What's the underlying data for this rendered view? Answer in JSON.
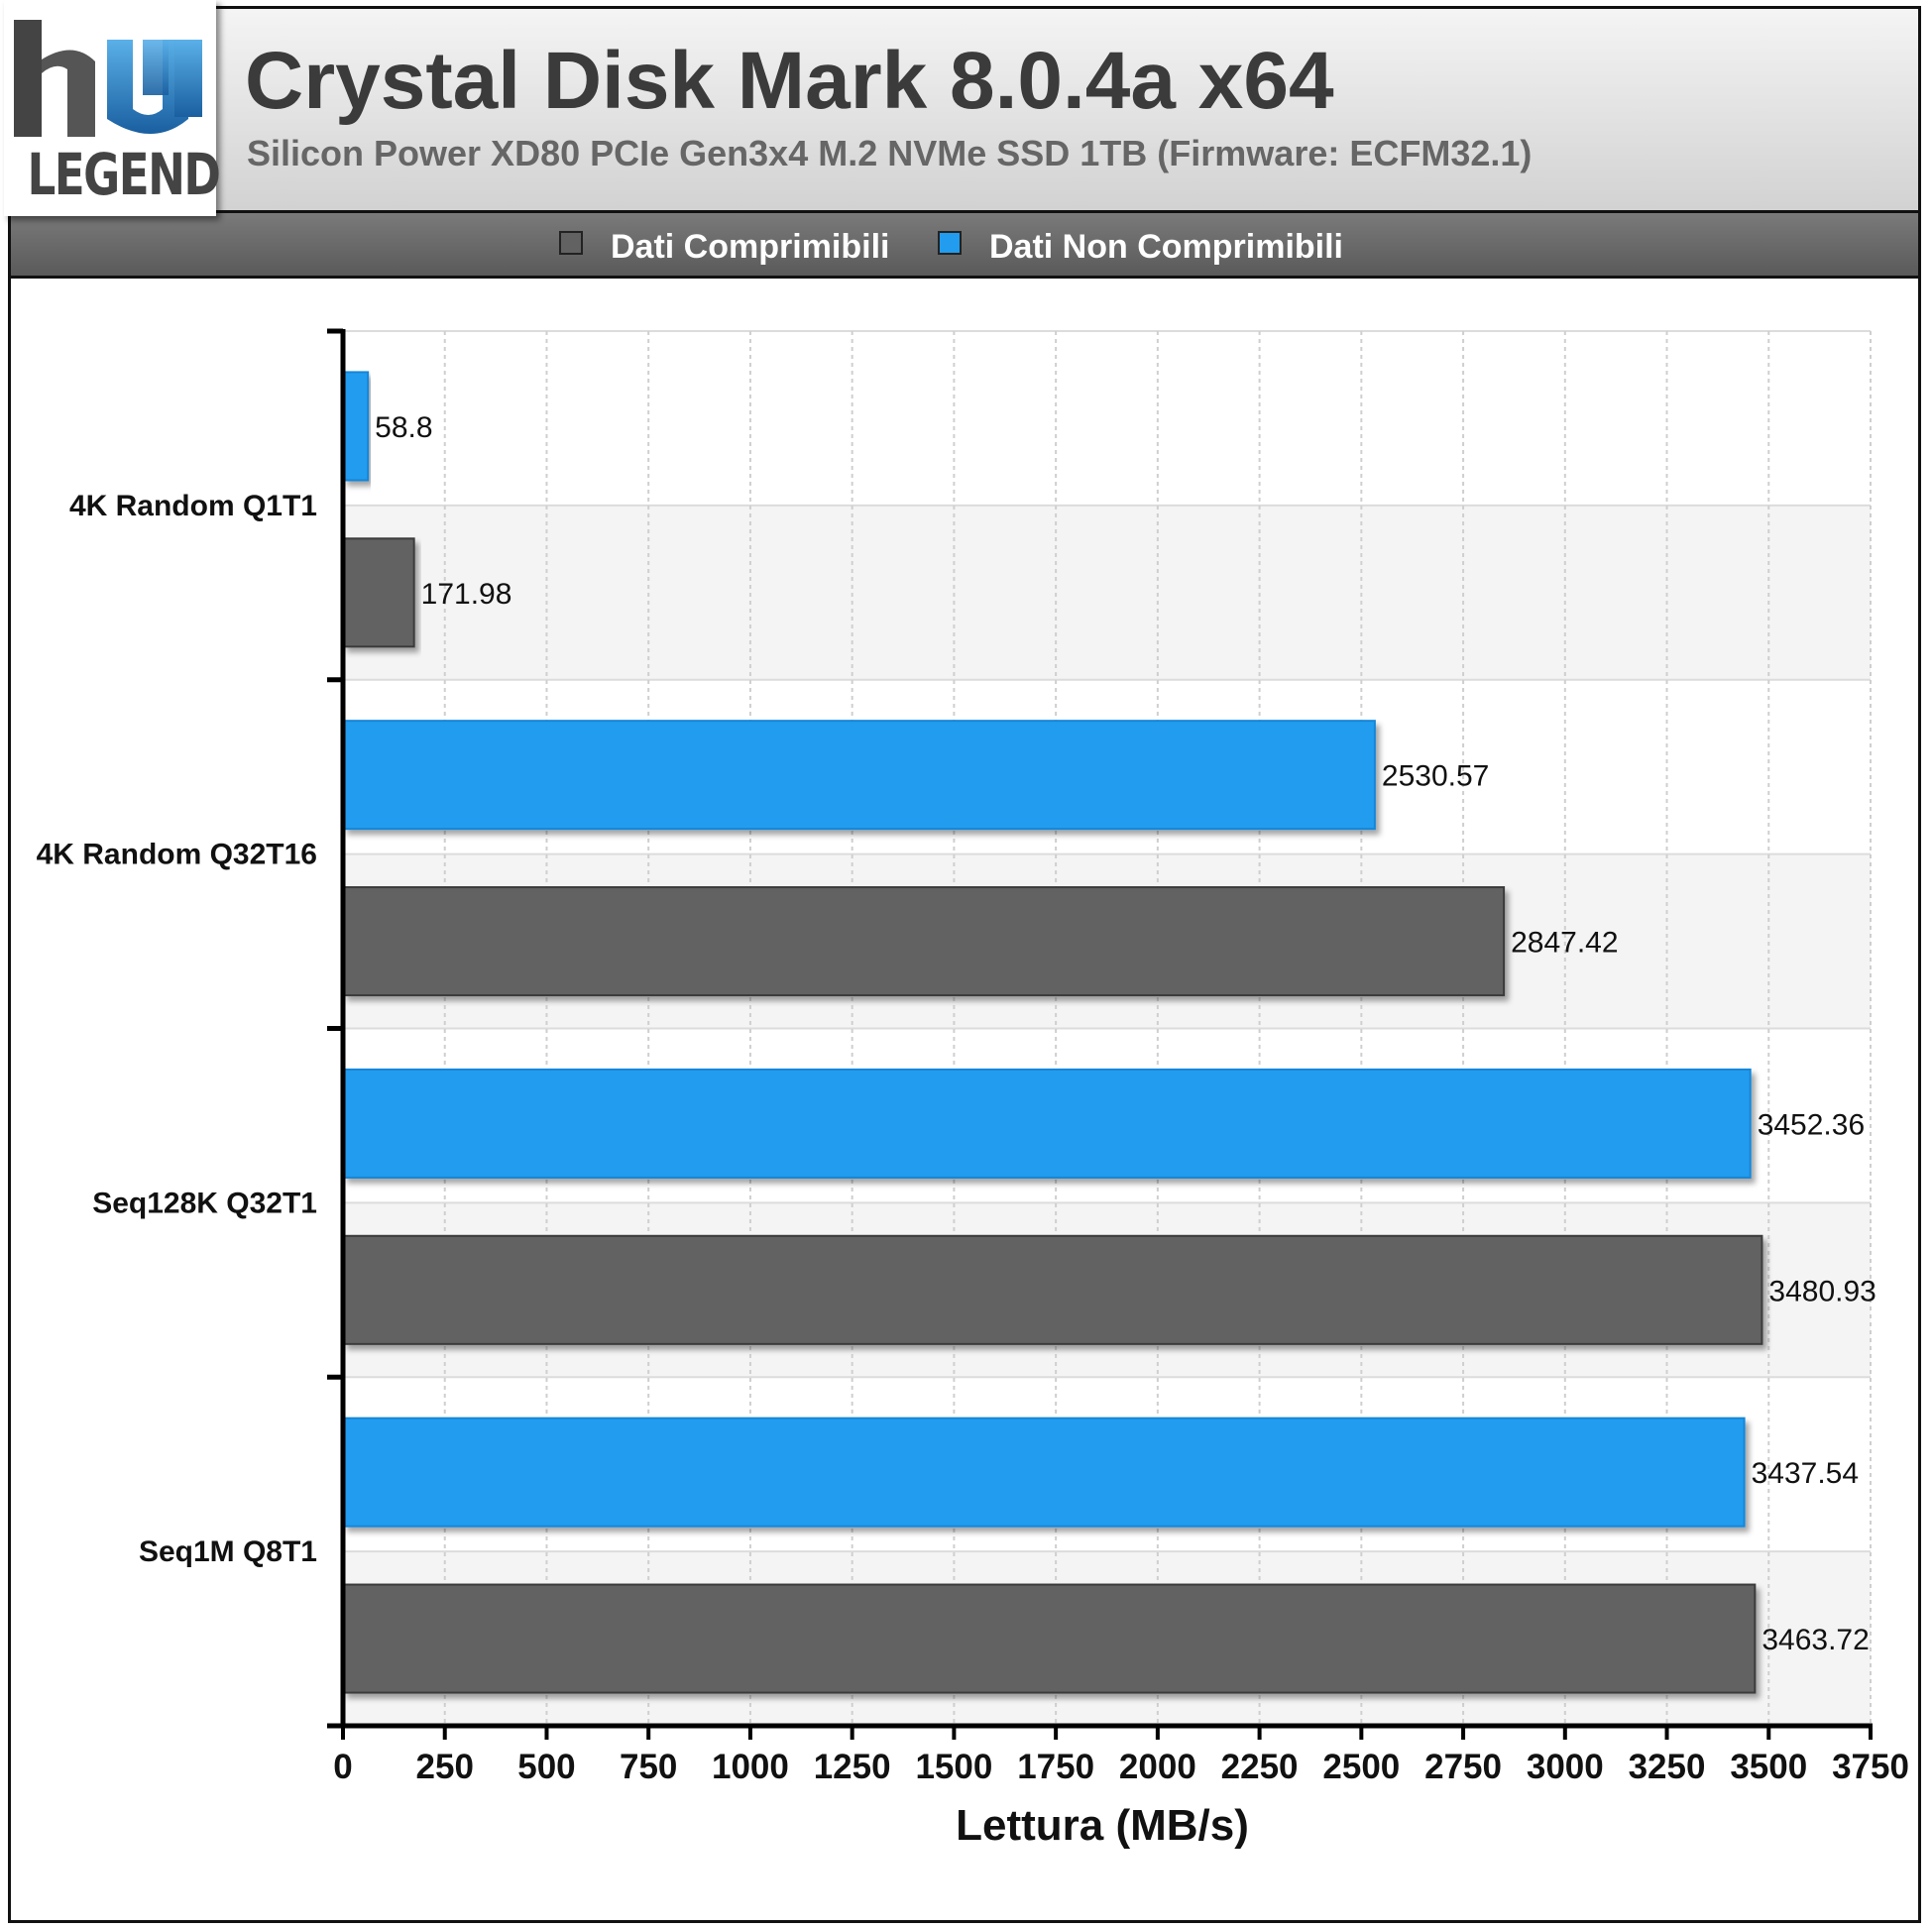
{
  "header": {
    "title": "Crystal Disk Mark 8.0.4a x64",
    "subtitle": "Silicon Power XD80 PCIe Gen3x4 M.2 NVMe SSD 1TB (Firmware: ECFM32.1)",
    "logo_text": "LEGEND",
    "logo_mark": "hw"
  },
  "legend": {
    "items": [
      {
        "label": "Dati Comprimibili",
        "color": "#626262"
      },
      {
        "label": "Dati Non Comprimibili",
        "color": "#219cef"
      }
    ]
  },
  "chart_data": {
    "type": "bar",
    "orientation": "horizontal",
    "categories": [
      "4K Random Q1T1",
      "4K Random Q32T16",
      "Seq128K Q32T1",
      "Seq1M Q8T1"
    ],
    "series": [
      {
        "name": "Dati Non Comprimibili",
        "color": "#219cef",
        "values": [
          58.8,
          2530.57,
          3452.36,
          3437.54
        ]
      },
      {
        "name": "Dati Comprimibili",
        "color": "#626262",
        "values": [
          171.98,
          2847.42,
          3480.93,
          3463.72
        ]
      }
    ],
    "value_labels": [
      [
        "58.8",
        "2530.57",
        "3452.36",
        "3437.54"
      ],
      [
        "171.98",
        "2847.42",
        "3480.93",
        "3463.72"
      ]
    ],
    "xlabel": "Lettura (MB/s)",
    "ylabel": "",
    "xlim": [
      0,
      3750
    ],
    "xticks": [
      "0",
      "250",
      "500",
      "750",
      "1000",
      "1250",
      "1500",
      "1750",
      "2000",
      "2250",
      "2500",
      "2750",
      "3000",
      "3250",
      "3500",
      "3750"
    ],
    "grid": true,
    "legend_position": "top"
  }
}
